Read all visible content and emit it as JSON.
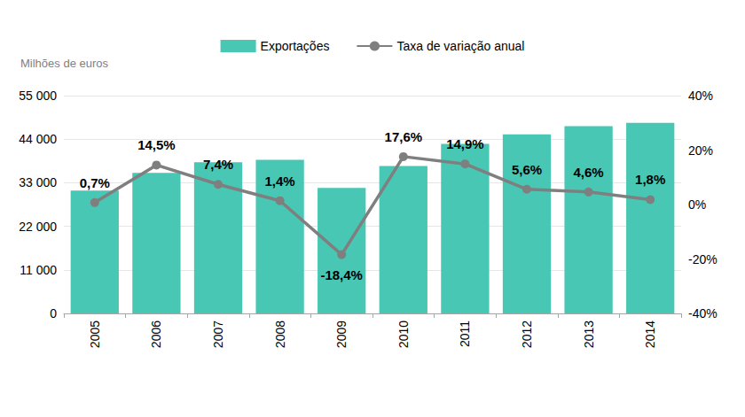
{
  "chart_data": {
    "type": "bar",
    "ylabel": "Milhões de euros",
    "categories": [
      "2005",
      "2006",
      "2007",
      "2008",
      "2009",
      "2010",
      "2011",
      "2012",
      "2013",
      "2014"
    ],
    "series": [
      {
        "name": "Exportações",
        "type": "bar",
        "color": "#48c7b4",
        "values": [
          31000,
          35500,
          38200,
          38800,
          31700,
          37200,
          42800,
          45200,
          47300,
          48100
        ]
      },
      {
        "name": "Taxa de variação anual",
        "type": "line",
        "axis": "y2",
        "color": "#7f7f7f",
        "marker": "circle",
        "data_labels": true,
        "values": [
          0.7,
          14.5,
          7.4,
          1.4,
          -18.4,
          17.6,
          14.9,
          5.6,
          4.6,
          1.8
        ],
        "value_labels": [
          "0,7%",
          "14,5%",
          "7,4%",
          "1,4%",
          "-18,4%",
          "17,6%",
          "14,9%",
          "5,6%",
          "4,6%",
          "1,8%"
        ]
      }
    ],
    "ylim": [
      0,
      55000
    ],
    "yticks": [
      0,
      {
        "value": 11000,
        "label": "11 000"
      },
      {
        "value": 22000,
        "label": "22 000"
      },
      {
        "value": 33000,
        "label": "33 000"
      },
      {
        "value": 44000,
        "label": "44 000"
      },
      {
        "value": 55000,
        "label": "55 000"
      }
    ],
    "y2lim": [
      -40,
      40
    ],
    "y2ticks": [
      {
        "value": -40,
        "label": "-40%"
      },
      {
        "value": -20,
        "label": "-20%"
      },
      {
        "value": 0,
        "label": "0%"
      },
      {
        "value": 20,
        "label": "20%"
      },
      {
        "value": 40,
        "label": "40%"
      }
    ],
    "grid": true,
    "legend": "top"
  }
}
